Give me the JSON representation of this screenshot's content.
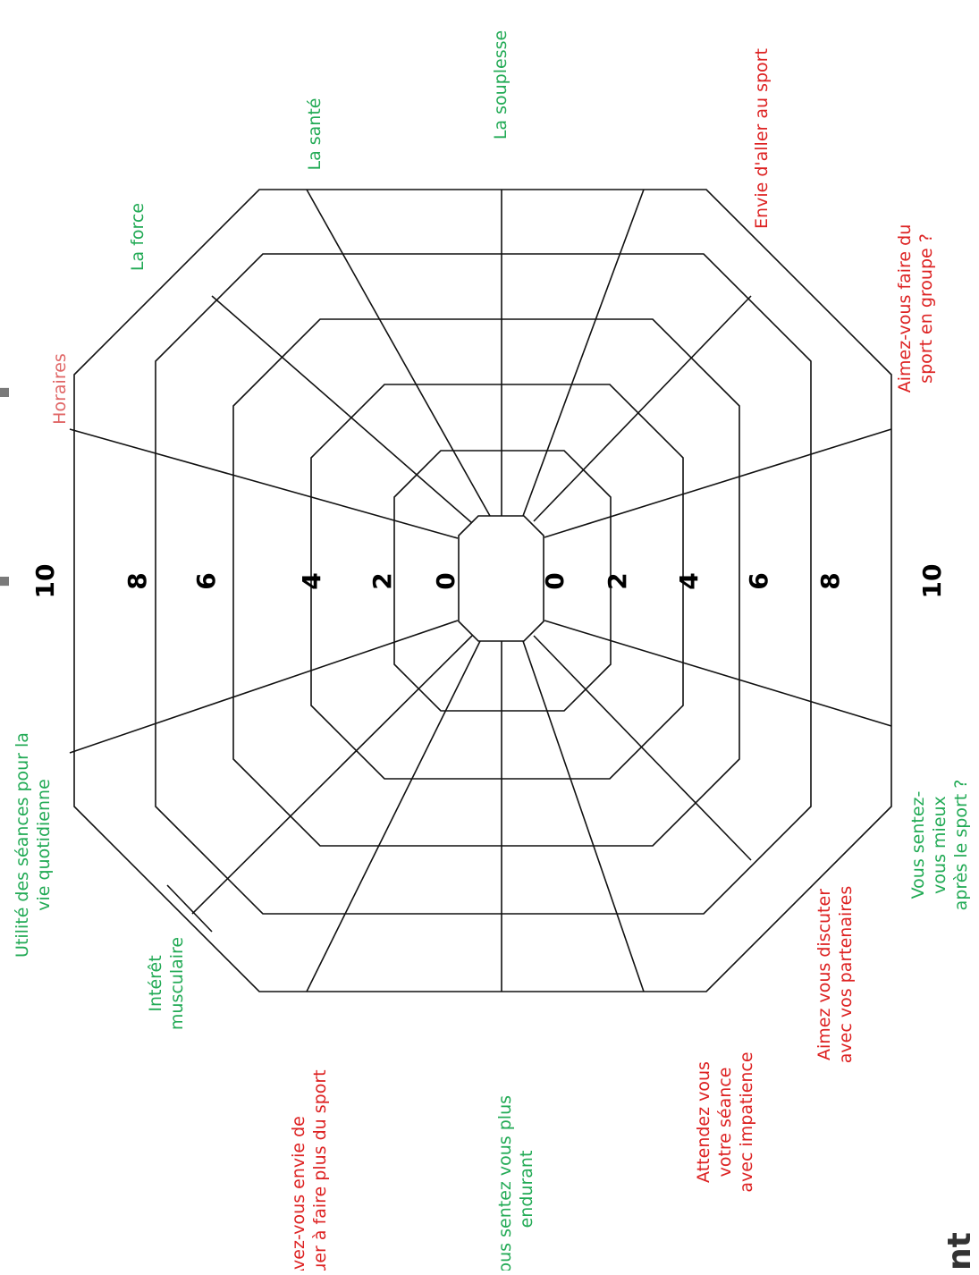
{
  "header": {
    "title_fragment": "participants",
    "footer_fragment": "nt"
  },
  "colors": {
    "green": "#22aa55",
    "red": "#dd2222",
    "pink": "#e06666",
    "grid": "#111111",
    "title": "#7a7a7a"
  },
  "scale": {
    "left": [
      "10",
      "8",
      "6",
      "4",
      "2",
      "0"
    ],
    "right": [
      "0",
      "2",
      "4",
      "6",
      "8",
      "10"
    ]
  },
  "axes": [
    {
      "id": "horaires",
      "lines": [
        "Horaires"
      ],
      "color": "pink"
    },
    {
      "id": "force",
      "lines": [
        "La force"
      ],
      "color": "green"
    },
    {
      "id": "sante",
      "lines": [
        "La santé"
      ],
      "color": "green"
    },
    {
      "id": "souplesse",
      "lines": [
        "La souplesse"
      ],
      "color": "green"
    },
    {
      "id": "envie-sport",
      "lines": [
        "Envie d'aller au sport"
      ],
      "color": "red"
    },
    {
      "id": "groupe",
      "lines": [
        "Aimez-vous faire du",
        "sport en groupe ?"
      ],
      "color": "red"
    },
    {
      "id": "mieux",
      "lines": [
        "Vous sentez-",
        "vous mieux",
        "après le sport ?"
      ],
      "color": "green"
    },
    {
      "id": "discuter",
      "lines": [
        "Aimez vous discuter",
        "avec vos partenaires"
      ],
      "color": "red"
    },
    {
      "id": "impatience",
      "lines": [
        "Attendez vous",
        "votre séance",
        "avec impatience"
      ],
      "color": "red"
    },
    {
      "id": "endurant",
      "lines": [
        "Vous sentez vous plus",
        "endurant"
      ],
      "color": "green"
    },
    {
      "id": "continuer",
      "lines": [
        "Avez-vous envie de",
        "continuer à faire plus du sport"
      ],
      "color": "red"
    },
    {
      "id": "musculaire",
      "lines": [
        "Intérêt",
        "musculaire"
      ],
      "color": "green"
    },
    {
      "id": "quotidienne",
      "lines": [
        "Utilité des séances pour la",
        "vie quotidienne"
      ],
      "color": "green"
    }
  ]
}
